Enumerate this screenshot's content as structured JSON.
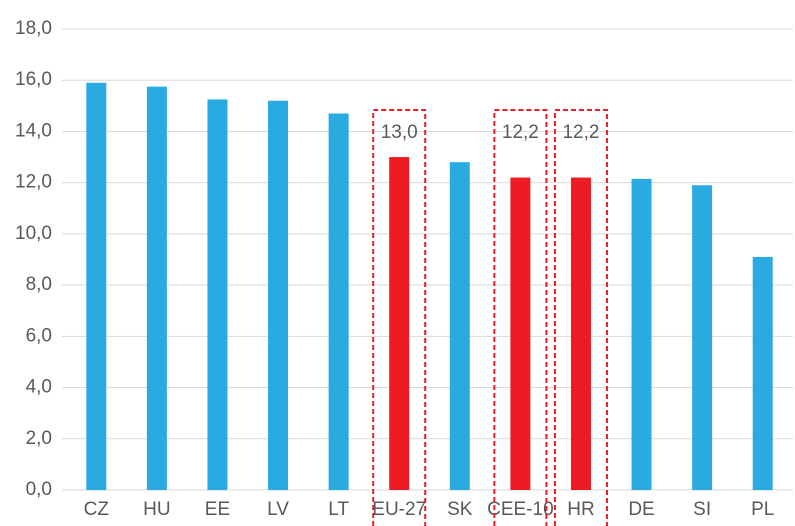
{
  "chart_data": {
    "type": "bar",
    "categories": [
      "CZ",
      "HU",
      "EE",
      "LV",
      "LT",
      "EU-27",
      "SK",
      "CEE-10",
      "HR",
      "DE",
      "SI",
      "PL"
    ],
    "values": [
      15.9,
      15.75,
      15.25,
      15.2,
      14.7,
      13.0,
      12.8,
      12.2,
      12.2,
      12.15,
      11.9,
      9.1
    ],
    "value_labels": [
      null,
      null,
      null,
      null,
      null,
      "13,0",
      null,
      "12,2",
      "12,2",
      null,
      null,
      null
    ],
    "colors": [
      "#29abe2",
      "#29abe2",
      "#29abe2",
      "#29abe2",
      "#29abe2",
      "#ed1c24",
      "#29abe2",
      "#ed1c24",
      "#ed1c24",
      "#29abe2",
      "#29abe2",
      "#29abe2"
    ],
    "ylim": [
      0,
      18
    ],
    "yticks": [
      {
        "value": 0,
        "label": "0,0"
      },
      {
        "value": 2,
        "label": "2,0"
      },
      {
        "value": 4,
        "label": "4,0"
      },
      {
        "value": 6,
        "label": "6,0"
      },
      {
        "value": 8,
        "label": "8,0"
      },
      {
        "value": 10,
        "label": "10,0"
      },
      {
        "value": 12,
        "label": "12,0"
      },
      {
        "value": 14,
        "label": "14,0"
      },
      {
        "value": 16,
        "label": "16,0"
      },
      {
        "value": 18,
        "label": "18,0"
      }
    ],
    "grid": true
  }
}
